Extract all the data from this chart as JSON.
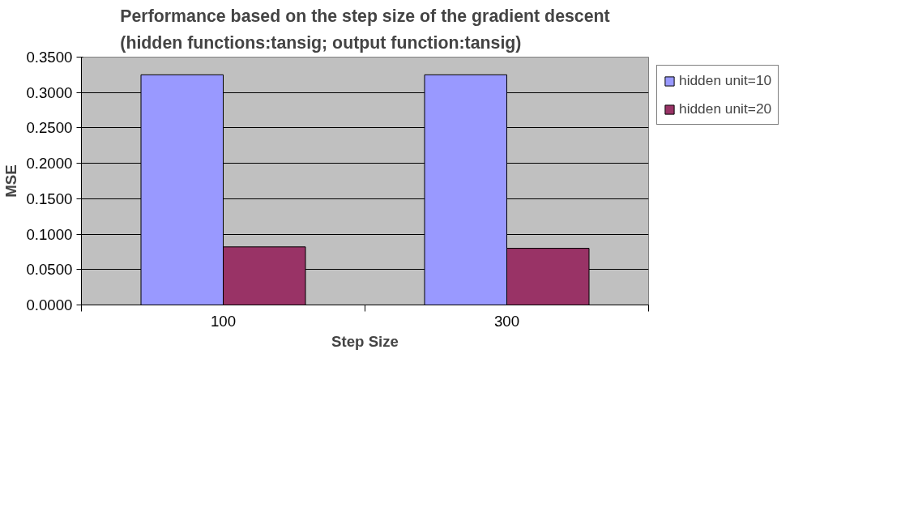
{
  "chart_data": {
    "type": "bar",
    "title": "Performance based on the step size of the gradient descent",
    "subtitle": "(hidden functions:tansig; output function:tansig)",
    "xlabel": "Step Size",
    "ylabel": "MSE",
    "categories": [
      "100",
      "300"
    ],
    "series": [
      {
        "name": "hidden unit=10",
        "color": "#9999ff",
        "values": [
          0.325,
          0.325
        ]
      },
      {
        "name": "hidden unit=20",
        "color": "#993366",
        "values": [
          0.082,
          0.08
        ]
      }
    ],
    "ylim": [
      0,
      0.35
    ],
    "yticks": [
      {
        "value": 0,
        "label": "0.0000"
      },
      {
        "value": 0.05,
        "label": "0.0500"
      },
      {
        "value": 0.1,
        "label": "0.1000"
      },
      {
        "value": 0.15,
        "label": "0.1500"
      },
      {
        "value": 0.2,
        "label": "0.2000"
      },
      {
        "value": 0.25,
        "label": "0.2500"
      },
      {
        "value": 0.3,
        "label": "0.3000"
      },
      {
        "value": 0.35,
        "label": "0.3500"
      }
    ],
    "grid": "y",
    "legend": "right"
  }
}
